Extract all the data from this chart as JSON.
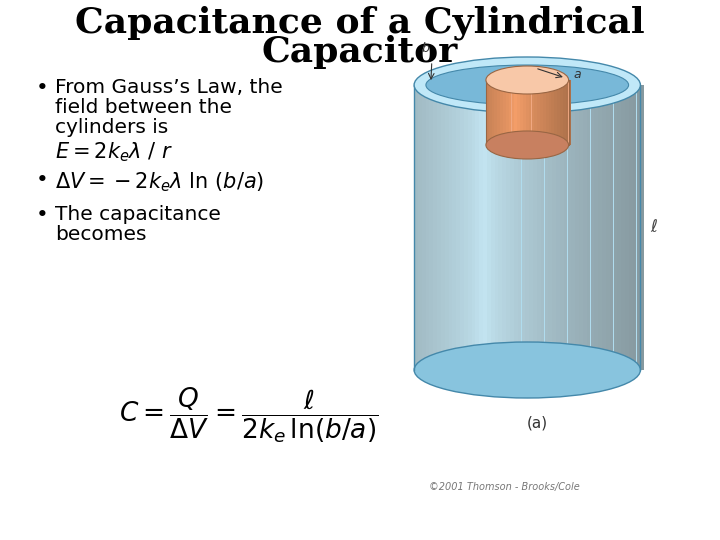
{
  "title_line1": "Capacitance of a Cylindrical",
  "title_line2": "Capacitor",
  "title_fontsize": 26,
  "title_font": "DejaVu Serif",
  "body_fontsize": 14.5,
  "body_font": "DejaVu Sans",
  "math_fontsize": 15,
  "bullet1_line1": "From Gauss’s Law, the",
  "bullet1_line2": "field between the",
  "bullet1_line3": "cylinders is",
  "bullet2": "$\\Delta V = -2k_e\\lambda$ ln $(b/a)$",
  "bullet3_line1": "The capacitance",
  "bullet3_line2": "becomes",
  "formula_fontsize": 19,
  "copyright": "©2001 Thomson - Brooks/Cole",
  "label_a": "(a)",
  "background_color": "#ffffff",
  "text_color": "#000000",
  "outer_body_color": "#aee0f0",
  "outer_top_color": "#c8eef8",
  "outer_bottom_color": "#88c8e0",
  "inner_body_color": "#f0a880",
  "inner_top_color": "#f8c8b0",
  "inner_bottom_color": "#d08060",
  "edge_color": "#4488aa",
  "inner_edge_color": "#996644"
}
